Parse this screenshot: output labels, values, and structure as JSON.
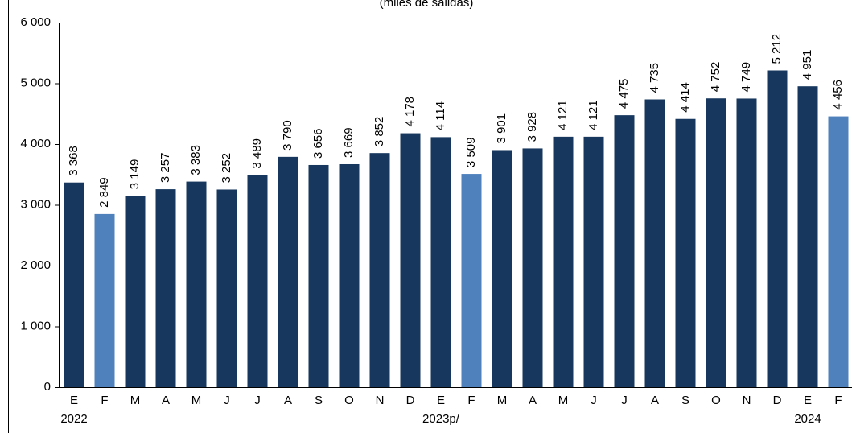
{
  "chart_data": {
    "type": "bar",
    "title": "(miles de salidas)",
    "categories": [
      "E",
      "F",
      "M",
      "A",
      "M",
      "J",
      "J",
      "A",
      "S",
      "O",
      "N",
      "D",
      "E",
      "F",
      "M",
      "A",
      "M",
      "J",
      "J",
      "A",
      "S",
      "O",
      "N",
      "D",
      "E",
      "F"
    ],
    "years": [
      "2022",
      "2023p/",
      "2024"
    ],
    "values": [
      3368,
      2849,
      3149,
      3257,
      3383,
      3252,
      3489,
      3790,
      3656,
      3669,
      3852,
      4178,
      4114,
      3509,
      3901,
      3928,
      4121,
      4121,
      4475,
      4735,
      4414,
      4752,
      4749,
      5212,
      4951,
      4456
    ],
    "value_labels": [
      "3 368",
      "2 849",
      "3 149",
      "3 257",
      "3 383",
      "3 252",
      "3 489",
      "3 790",
      "3 656",
      "3 669",
      "3 852",
      "4 178",
      "4 114",
      "3 509",
      "3 901",
      "3 928",
      "4 121",
      "4 121",
      "4 475",
      "4 735",
      "4 414",
      "4 752",
      "4 749",
      "5 212",
      "4 951",
      "4 456"
    ],
    "colors": [
      "#17375e",
      "#4f81bd",
      "#17375e",
      "#17375e",
      "#17375e",
      "#17375e",
      "#17375e",
      "#17375e",
      "#17375e",
      "#17375e",
      "#17375e",
      "#17375e",
      "#17375e",
      "#4f81bd",
      "#17375e",
      "#17375e",
      "#17375e",
      "#17375e",
      "#17375e",
      "#17375e",
      "#17375e",
      "#17375e",
      "#17375e",
      "#17375e",
      "#17375e",
      "#4f81bd"
    ],
    "ylim": [
      0,
      6000
    ],
    "yticks": [
      0,
      {
        "value": 1000,
        "label": "1 000"
      },
      {
        "value": 2000,
        "label": "2 000"
      },
      {
        "value": 3000,
        "label": "3 000"
      },
      {
        "value": 4000,
        "label": "4 000"
      },
      {
        "value": 5000,
        "label": "5 000"
      },
      {
        "value": 6000,
        "label": "6 000"
      }
    ]
  }
}
